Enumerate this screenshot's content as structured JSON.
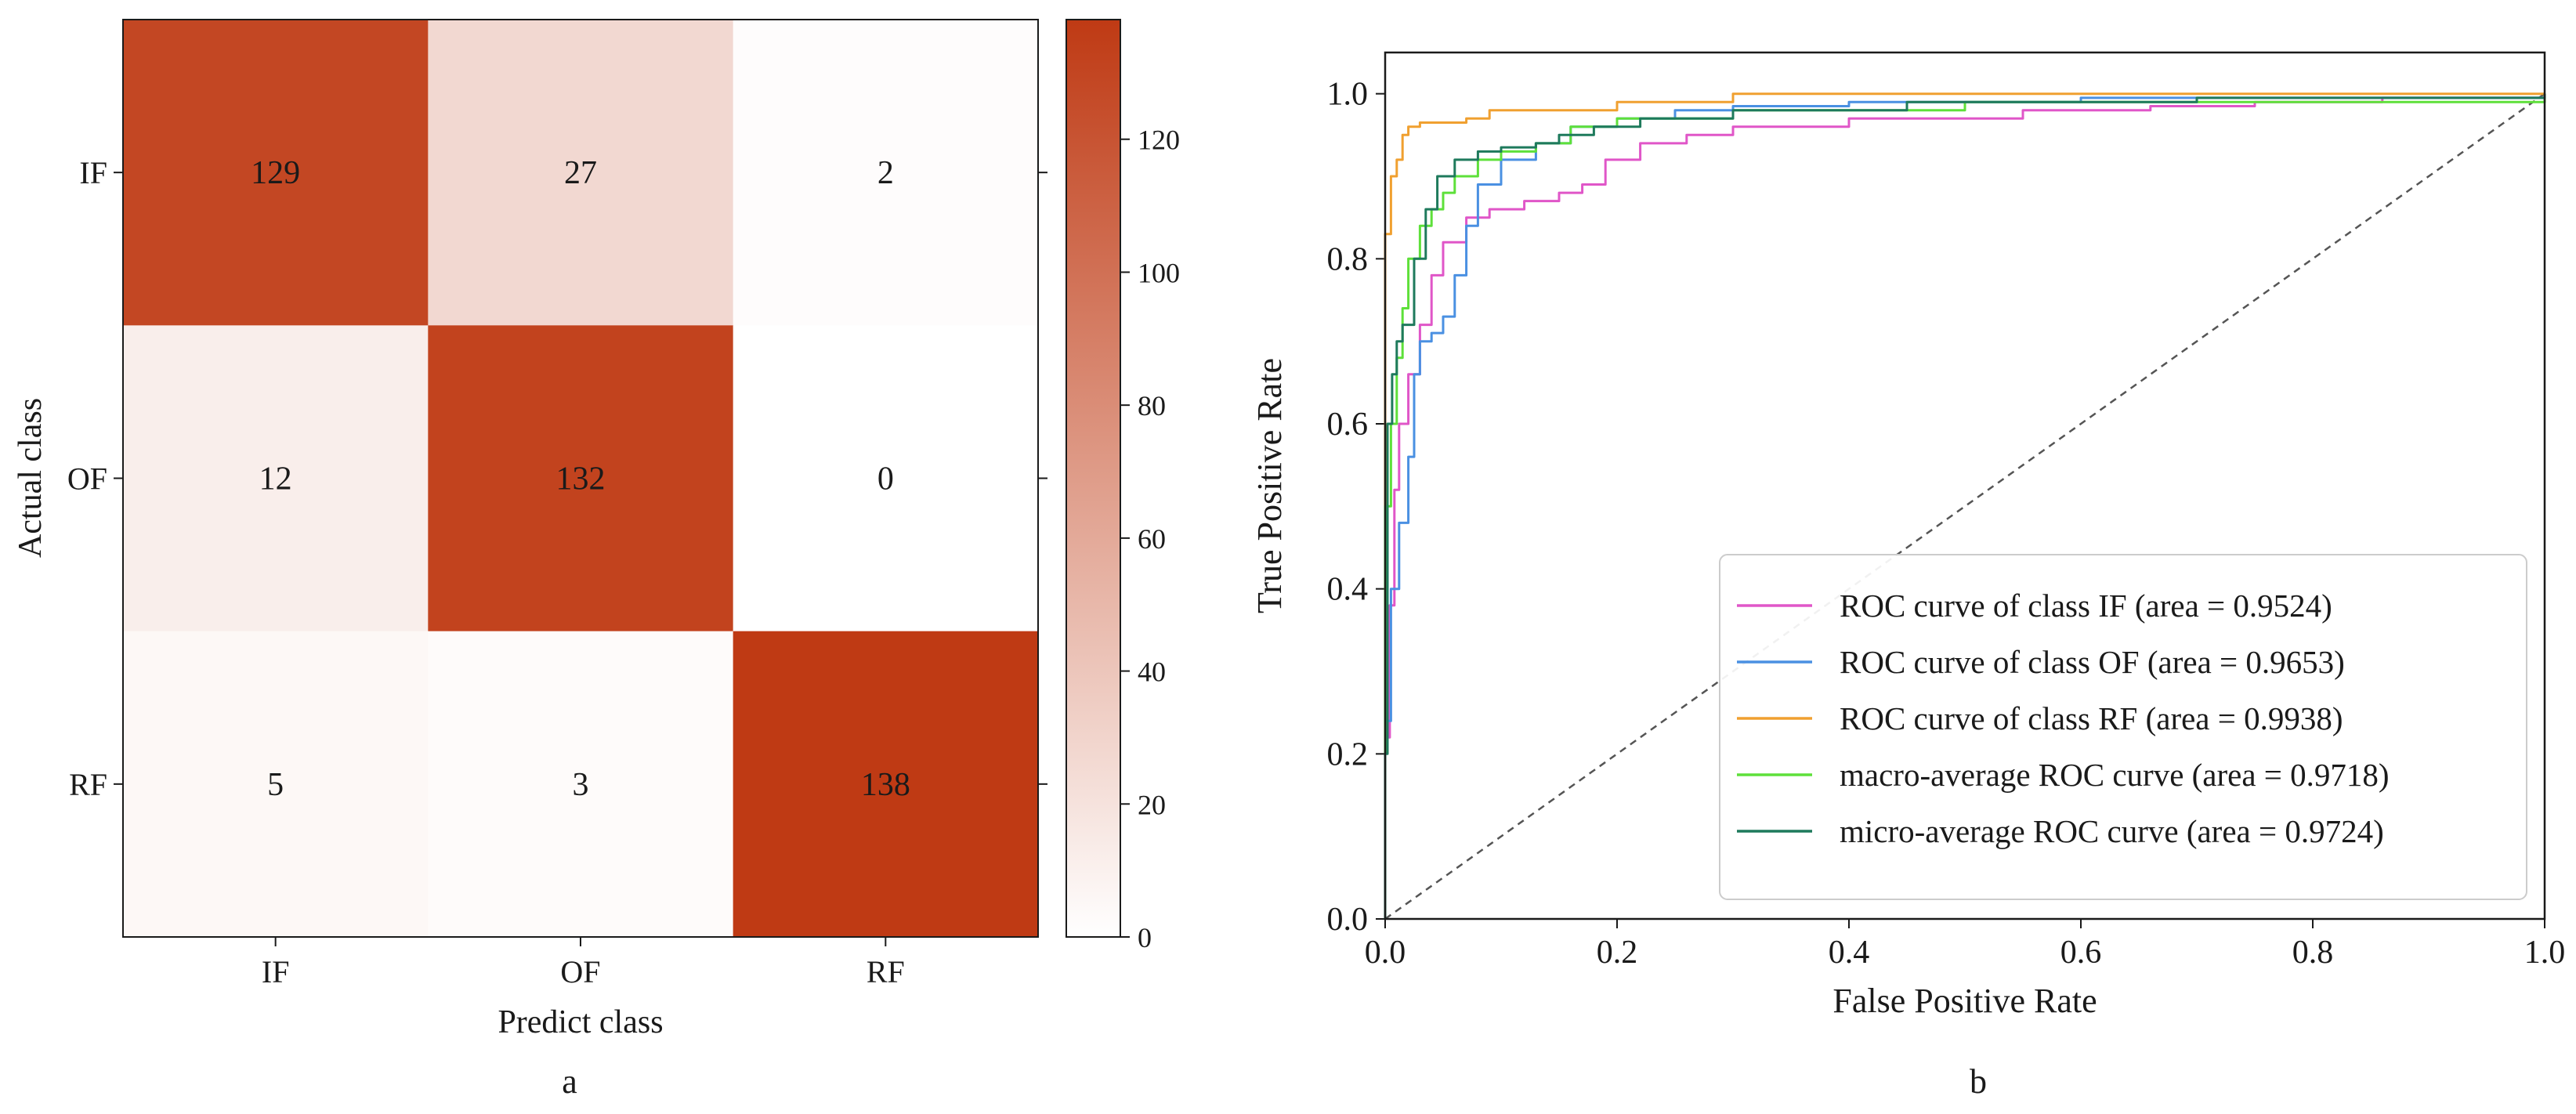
{
  "chart_data": [
    {
      "type": "heatmap",
      "panel_label": "a",
      "rows": [
        "IF",
        "OF",
        "RF"
      ],
      "cols": [
        "IF",
        "OF",
        "RF"
      ],
      "values": [
        [
          129,
          27,
          2
        ],
        [
          12,
          132,
          0
        ],
        [
          5,
          3,
          138
        ]
      ],
      "xlabel": "Predict class",
      "ylabel": "Actual class",
      "colorbar": {
        "min": 0,
        "max": 138,
        "ticks": [
          0,
          20,
          40,
          60,
          80,
          100,
          120
        ],
        "color_low": "#ffffff",
        "color_high": "#bf3a14"
      }
    },
    {
      "type": "line",
      "panel_label": "b",
      "xlabel": "False Positive Rate",
      "ylabel": "True Positive Rate",
      "xlim": [
        0,
        1.0
      ],
      "ylim": [
        0,
        1.05
      ],
      "xticks": [
        0.0,
        0.2,
        0.4,
        0.6,
        0.8,
        1.0
      ],
      "yticks": [
        0.0,
        0.2,
        0.4,
        0.6,
        0.8,
        1.0
      ],
      "legend_position": "lower-right",
      "series": [
        {
          "name": "ROC curve of class IF (area = 0.9524)",
          "color": "#e056c8",
          "points": [
            [
              0,
              0
            ],
            [
              0,
              0.22
            ],
            [
              0.004,
              0.38
            ],
            [
              0.008,
              0.52
            ],
            [
              0.012,
              0.6
            ],
            [
              0.02,
              0.66
            ],
            [
              0.03,
              0.72
            ],
            [
              0.04,
              0.78
            ],
            [
              0.05,
              0.82
            ],
            [
              0.07,
              0.85
            ],
            [
              0.09,
              0.86
            ],
            [
              0.12,
              0.87
            ],
            [
              0.15,
              0.88
            ],
            [
              0.17,
              0.89
            ],
            [
              0.19,
              0.92
            ],
            [
              0.22,
              0.94
            ],
            [
              0.26,
              0.95
            ],
            [
              0.3,
              0.96
            ],
            [
              0.4,
              0.97
            ],
            [
              0.55,
              0.98
            ],
            [
              0.66,
              0.985
            ],
            [
              0.75,
              0.99
            ],
            [
              0.86,
              0.995
            ],
            [
              1.0,
              1.0
            ]
          ]
        },
        {
          "name": "ROC curve of class OF (area = 0.9653)",
          "color": "#4a90e2",
          "points": [
            [
              0,
              0
            ],
            [
              0,
              0.24
            ],
            [
              0.005,
              0.4
            ],
            [
              0.012,
              0.48
            ],
            [
              0.02,
              0.56
            ],
            [
              0.025,
              0.66
            ],
            [
              0.03,
              0.7
            ],
            [
              0.04,
              0.71
            ],
            [
              0.05,
              0.73
            ],
            [
              0.06,
              0.78
            ],
            [
              0.07,
              0.84
            ],
            [
              0.08,
              0.89
            ],
            [
              0.1,
              0.92
            ],
            [
              0.13,
              0.94
            ],
            [
              0.16,
              0.96
            ],
            [
              0.2,
              0.97
            ],
            [
              0.25,
              0.98
            ],
            [
              0.3,
              0.985
            ],
            [
              0.4,
              0.99
            ],
            [
              0.6,
              0.995
            ],
            [
              1.0,
              1.0
            ]
          ]
        },
        {
          "name": "ROC curve of class RF (area = 0.9938)",
          "color": "#f0a030",
          "points": [
            [
              0,
              0
            ],
            [
              0,
              0.83
            ],
            [
              0.005,
              0.9
            ],
            [
              0.01,
              0.92
            ],
            [
              0.015,
              0.95
            ],
            [
              0.02,
              0.96
            ],
            [
              0.03,
              0.965
            ],
            [
              0.07,
              0.97
            ],
            [
              0.09,
              0.98
            ],
            [
              0.2,
              0.99
            ],
            [
              0.3,
              1.0
            ],
            [
              1.0,
              1.0
            ]
          ]
        },
        {
          "name": "macro-average ROC curve (area = 0.9718)",
          "color": "#5ee03a",
          "points": [
            [
              0,
              0
            ],
            [
              0,
              0.5
            ],
            [
              0.005,
              0.6
            ],
            [
              0.01,
              0.68
            ],
            [
              0.015,
              0.74
            ],
            [
              0.02,
              0.8
            ],
            [
              0.03,
              0.84
            ],
            [
              0.04,
              0.86
            ],
            [
              0.05,
              0.88
            ],
            [
              0.06,
              0.9
            ],
            [
              0.08,
              0.92
            ],
            [
              0.1,
              0.93
            ],
            [
              0.13,
              0.94
            ],
            [
              0.16,
              0.96
            ],
            [
              0.2,
              0.97
            ],
            [
              0.3,
              0.98
            ],
            [
              0.5,
              0.99
            ],
            [
              1.0,
              1.0
            ]
          ]
        },
        {
          "name": "micro-average ROC curve (area = 0.9724)",
          "color": "#1e7a5c",
          "points": [
            [
              0,
              0
            ],
            [
              0,
              0.2
            ],
            [
              0.002,
              0.6
            ],
            [
              0.006,
              0.66
            ],
            [
              0.01,
              0.7
            ],
            [
              0.015,
              0.72
            ],
            [
              0.025,
              0.8
            ],
            [
              0.035,
              0.86
            ],
            [
              0.045,
              0.9
            ],
            [
              0.06,
              0.92
            ],
            [
              0.08,
              0.93
            ],
            [
              0.1,
              0.935
            ],
            [
              0.13,
              0.94
            ],
            [
              0.15,
              0.95
            ],
            [
              0.18,
              0.96
            ],
            [
              0.22,
              0.97
            ],
            [
              0.3,
              0.98
            ],
            [
              0.45,
              0.99
            ],
            [
              0.7,
              0.995
            ],
            [
              1.0,
              1.0
            ]
          ]
        }
      ],
      "diagonal": {
        "points": [
          [
            0,
            0
          ],
          [
            1,
            1
          ]
        ],
        "color": "#555555",
        "style": "dashed"
      }
    }
  ]
}
